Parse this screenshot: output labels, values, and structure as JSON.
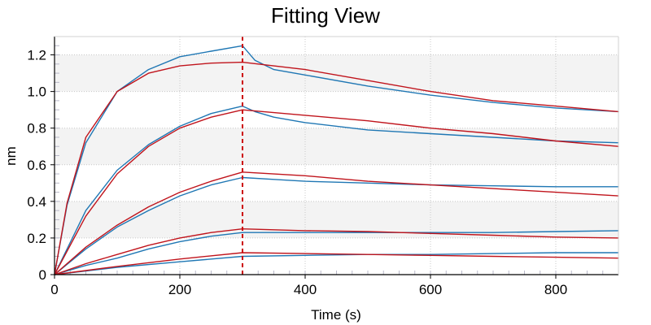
{
  "chart_data": {
    "type": "line",
    "title": "Fitting View",
    "xlabel": "Time (s)",
    "ylabel": "nm",
    "xlim": [
      0,
      900
    ],
    "ylim": [
      0,
      1.3
    ],
    "xticks": [
      0,
      200,
      400,
      600,
      800
    ],
    "yticks": [
      0,
      0.2,
      0.4,
      0.6,
      0.8,
      1.0,
      1.2
    ],
    "xtick_labels": [
      "0",
      "200",
      "400",
      "600",
      "800"
    ],
    "ytick_labels": [
      "0",
      "0.2",
      "0.4",
      "0.6",
      "0.8",
      "1.0",
      "1.2"
    ],
    "grid": true,
    "legend": "none",
    "association_end": 300,
    "marker_color": "#cc0000",
    "measured_color": "#1f77b4",
    "fit_color": "#c0141c",
    "series": [
      {
        "kind": "measured",
        "x": [
          0,
          20,
          50,
          100,
          150,
          200,
          250,
          300,
          320,
          350,
          400,
          500,
          600,
          700,
          800,
          900
        ],
        "values": [
          0,
          0.38,
          0.72,
          1.0,
          1.12,
          1.19,
          1.22,
          1.25,
          1.17,
          1.12,
          1.09,
          1.03,
          0.98,
          0.94,
          0.91,
          0.89
        ]
      },
      {
        "kind": "fit",
        "x": [
          0,
          20,
          50,
          100,
          150,
          200,
          250,
          300,
          400,
          500,
          600,
          700,
          800,
          900
        ],
        "values": [
          0,
          0.39,
          0.75,
          1.0,
          1.1,
          1.14,
          1.155,
          1.16,
          1.12,
          1.06,
          1.0,
          0.95,
          0.92,
          0.89
        ]
      },
      {
        "kind": "measured",
        "x": [
          0,
          50,
          100,
          150,
          200,
          250,
          300,
          320,
          350,
          400,
          500,
          600,
          700,
          800,
          900
        ],
        "values": [
          0,
          0.35,
          0.57,
          0.71,
          0.81,
          0.88,
          0.92,
          0.89,
          0.86,
          0.83,
          0.79,
          0.77,
          0.75,
          0.73,
          0.72
        ]
      },
      {
        "kind": "fit",
        "x": [
          0,
          50,
          100,
          150,
          200,
          250,
          300,
          400,
          500,
          600,
          700,
          800,
          900
        ],
        "values": [
          0,
          0.32,
          0.55,
          0.7,
          0.8,
          0.86,
          0.9,
          0.87,
          0.84,
          0.8,
          0.77,
          0.73,
          0.7
        ]
      },
      {
        "kind": "measured",
        "x": [
          0,
          50,
          100,
          150,
          200,
          250,
          300,
          350,
          400,
          500,
          600,
          700,
          800,
          900
        ],
        "values": [
          0,
          0.14,
          0.26,
          0.35,
          0.43,
          0.49,
          0.53,
          0.52,
          0.51,
          0.5,
          0.49,
          0.485,
          0.48,
          0.48
        ]
      },
      {
        "kind": "fit",
        "x": [
          0,
          50,
          100,
          150,
          200,
          250,
          300,
          400,
          500,
          600,
          700,
          800,
          900
        ],
        "values": [
          0,
          0.15,
          0.27,
          0.37,
          0.45,
          0.51,
          0.56,
          0.54,
          0.51,
          0.49,
          0.47,
          0.45,
          0.43
        ]
      },
      {
        "kind": "measured",
        "x": [
          0,
          50,
          100,
          150,
          200,
          250,
          300,
          400,
          500,
          600,
          700,
          800,
          900
        ],
        "values": [
          0,
          0.05,
          0.09,
          0.14,
          0.18,
          0.21,
          0.23,
          0.23,
          0.23,
          0.23,
          0.23,
          0.235,
          0.24
        ]
      },
      {
        "kind": "fit",
        "x": [
          0,
          50,
          100,
          150,
          200,
          250,
          300,
          400,
          500,
          600,
          700,
          800,
          900
        ],
        "values": [
          0,
          0.06,
          0.11,
          0.16,
          0.2,
          0.23,
          0.25,
          0.24,
          0.235,
          0.225,
          0.215,
          0.205,
          0.2
        ]
      },
      {
        "kind": "measured",
        "x": [
          0,
          100,
          200,
          300,
          400,
          500,
          600,
          700,
          800,
          900
        ],
        "values": [
          0,
          0.04,
          0.07,
          0.1,
          0.105,
          0.11,
          0.11,
          0.115,
          0.12,
          0.12
        ]
      },
      {
        "kind": "fit",
        "x": [
          0,
          100,
          200,
          300,
          400,
          500,
          600,
          700,
          800,
          900
        ],
        "values": [
          0,
          0.045,
          0.085,
          0.12,
          0.115,
          0.11,
          0.105,
          0.1,
          0.095,
          0.09
        ]
      }
    ]
  }
}
